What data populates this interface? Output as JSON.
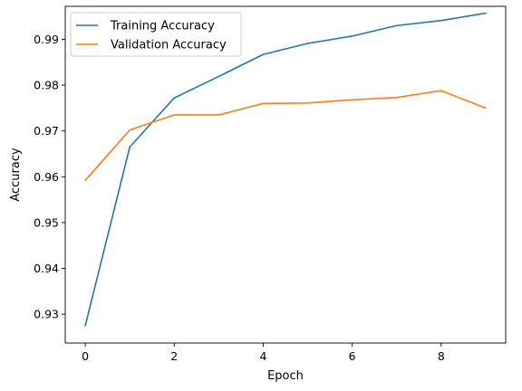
{
  "chart_data": {
    "type": "line",
    "title": "",
    "xlabel": "Epoch",
    "ylabel": "Accuracy",
    "xlim": [
      -0.45,
      9.45
    ],
    "ylim": [
      0.9237,
      0.9972
    ],
    "xticks": [
      0,
      2,
      4,
      6,
      8
    ],
    "yticks": [
      0.93,
      0.94,
      0.95,
      0.96,
      0.97,
      0.98,
      0.99
    ],
    "ytick_labels": [
      "0.93",
      "0.94",
      "0.95",
      "0.96",
      "0.97",
      "0.98",
      "0.99"
    ],
    "grid": false,
    "legend_position": "top-left",
    "x": [
      0,
      1,
      2,
      3,
      4,
      5,
      6,
      7,
      8,
      9
    ],
    "series": [
      {
        "name": "Training Accuracy",
        "color": "#1f77b4",
        "values": [
          0.9275,
          0.9665,
          0.9772,
          0.9819,
          0.9867,
          0.9891,
          0.9907,
          0.993,
          0.9941,
          0.9957
        ]
      },
      {
        "name": "Validation Accuracy",
        "color": "#ff7f0e",
        "values": [
          0.9592,
          0.9702,
          0.9735,
          0.9735,
          0.976,
          0.9761,
          0.9768,
          0.9773,
          0.9788,
          0.975
        ]
      }
    ]
  }
}
